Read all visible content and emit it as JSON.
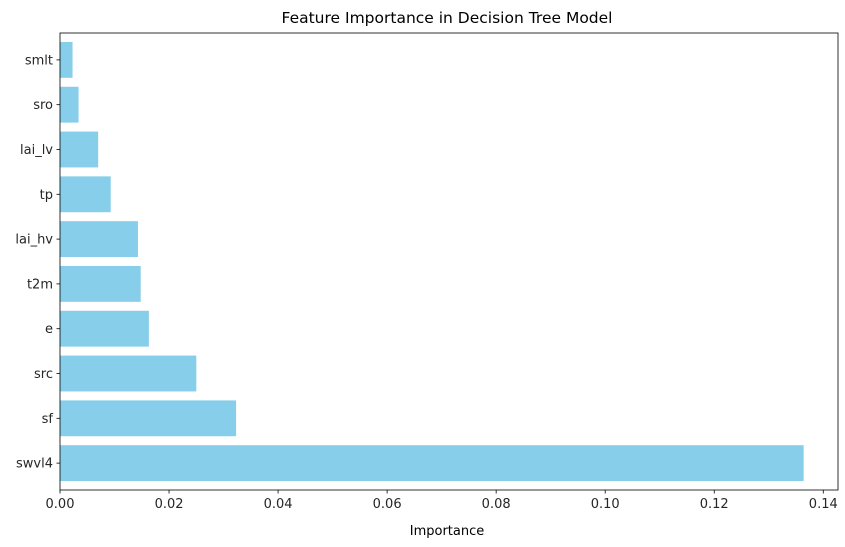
{
  "chart_data": {
    "type": "bar",
    "orientation": "horizontal",
    "title": "Feature Importance in Decision Tree Model",
    "xlabel": "Importance",
    "ylabel": "",
    "xlim": [
      0,
      0.1427
    ],
    "xticks": [
      "0.00",
      "0.02",
      "0.04",
      "0.06",
      "0.08",
      "0.10",
      "0.12",
      "0.14"
    ],
    "xtick_values": [
      0,
      0.02,
      0.04,
      0.06,
      0.08,
      0.1,
      0.12,
      0.14
    ],
    "categories": [
      "swvl4",
      "sf",
      "src",
      "e",
      "t2m",
      "lai_hv",
      "tp",
      "lai_lv",
      "sro",
      "smlt"
    ],
    "values": [
      0.1364,
      0.0323,
      0.025,
      0.0163,
      0.0148,
      0.0143,
      0.0093,
      0.007,
      0.0034,
      0.0023
    ],
    "bar_color": "#87ceeb",
    "grid": false,
    "legend": false
  }
}
